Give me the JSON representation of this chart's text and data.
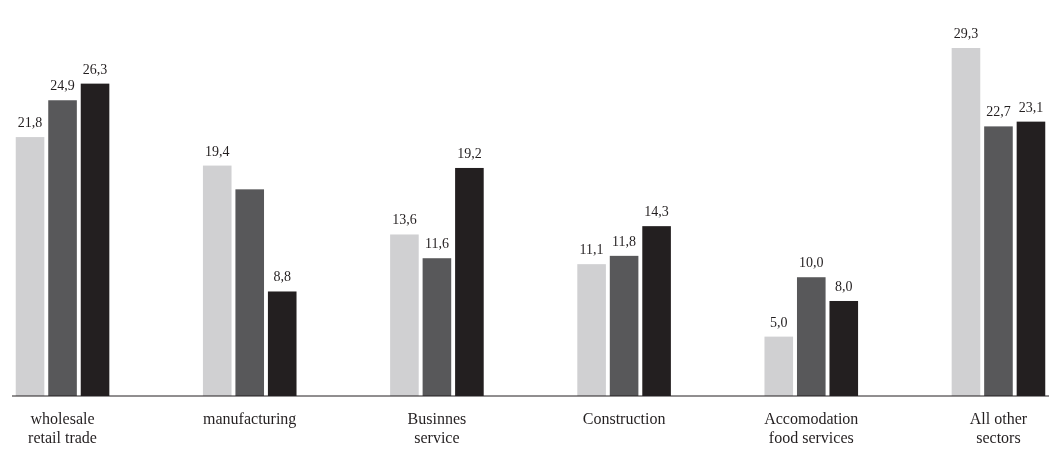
{
  "chart_data": {
    "type": "bar",
    "categories": [
      "wholesale\nretail trade",
      "manufacturing",
      "Businnes\nservice",
      "Construction",
      "Accomodation\nfood services",
      "All other\nsectors"
    ],
    "series": [
      {
        "color": "#d0d0d2",
        "values": [
          21.8,
          19.4,
          13.6,
          11.1,
          5.0,
          29.3
        ],
        "value_labels": [
          "21,8",
          "19,4",
          "13,6",
          "11,1",
          "5,0",
          "29,3"
        ]
      },
      {
        "color": "#58585a",
        "values": [
          24.9,
          17.4,
          11.6,
          11.8,
          10.0,
          22.7
        ],
        "value_labels": [
          "24,9",
          null,
          "11,6",
          "11,8",
          "10,0",
          "22,7"
        ]
      },
      {
        "color": "#231f20",
        "values": [
          26.3,
          8.8,
          19.2,
          14.3,
          8.0,
          23.1
        ],
        "value_labels": [
          "26,3",
          "8,8",
          "19,2",
          "14,3",
          "8,0",
          "23,1"
        ]
      }
    ]
  }
}
